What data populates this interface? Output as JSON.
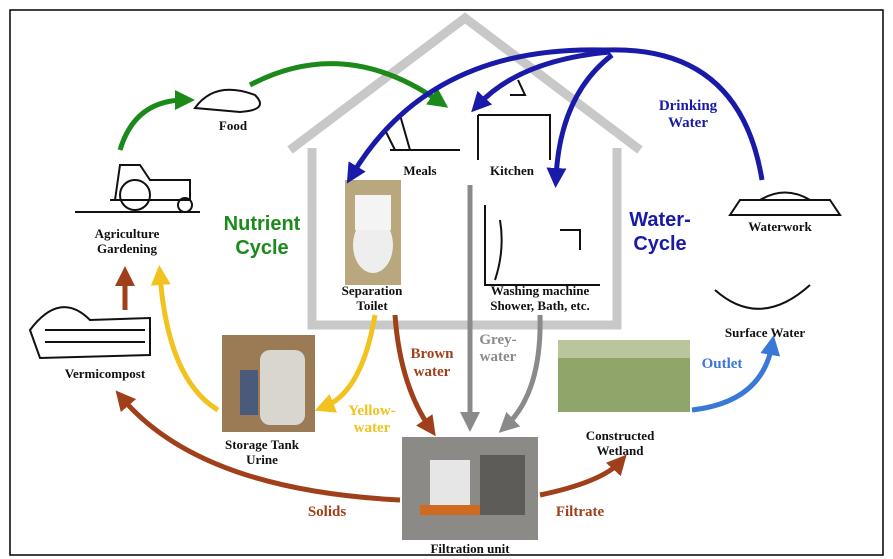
{
  "nodes": {
    "food": [
      "Food"
    ],
    "agriculture": [
      "Agriculture",
      "Gardening"
    ],
    "meals": [
      "Meals"
    ],
    "kitchen": [
      "Kitchen"
    ],
    "toilet": [
      "Separation",
      "Toilet"
    ],
    "washing": [
      "Washing machine",
      "Shower, Bath, etc."
    ],
    "waterwork": [
      "Waterwork"
    ],
    "surface_water": [
      "Surface Water"
    ],
    "vermicompost": [
      "Vermicompost"
    ],
    "storage_tank": [
      "Storage Tank",
      "Urine"
    ],
    "wetland": [
      "Constructed",
      "Wetland"
    ],
    "filtration": [
      "Filtration unit"
    ]
  },
  "cycles": {
    "nutrient": [
      "Nutrient",
      "Cycle"
    ],
    "water": [
      "Water-",
      "Cycle"
    ]
  },
  "flows": {
    "drinking_water": [
      "Drinking",
      "Water"
    ],
    "brown_water": [
      "Brown",
      "water"
    ],
    "grey_water": [
      "Grey-",
      "water"
    ],
    "yellow_water": [
      "Yellow-",
      "water"
    ],
    "outlet": [
      "Outlet"
    ],
    "solids": [
      "Solids"
    ],
    "filtrate": [
      "Filtrate"
    ]
  }
}
